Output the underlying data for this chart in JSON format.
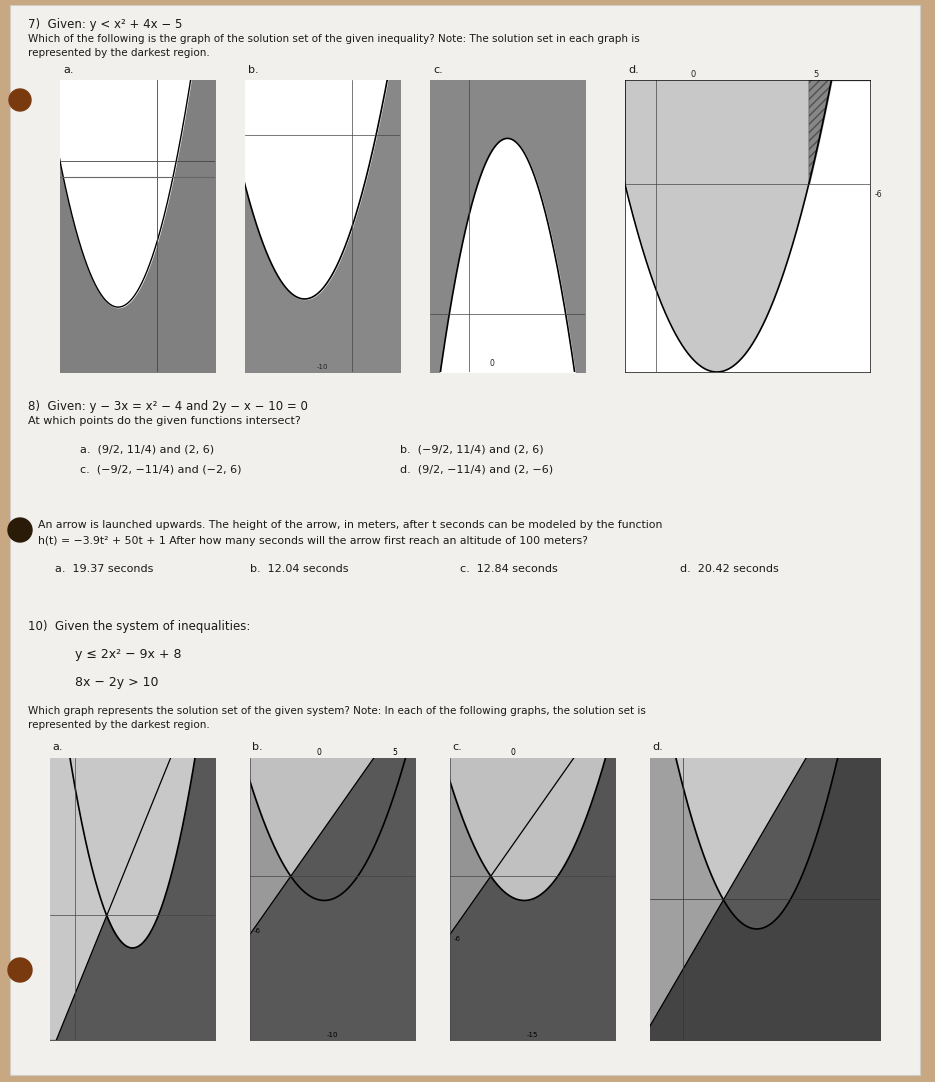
{
  "bg_color": "#c8a882",
  "paper_color": "#f2f0ec",
  "text_color": "#1a1a1a",
  "graph_bg": "#b0b0b0",
  "graph_dark": "#606060",
  "graph_mid": "#909090",
  "graph_light": "#d0d0d0",
  "hole_color": "#7a3a10",
  "q7_line1": "7)  Given: y < x² + 4x − 5",
  "q7_line2": "Which of the following is the graph of the solution set of the given inequality? Note: The solution set in each graph is",
  "q7_line3": "represented by the darkest region.",
  "q8_line1": "8)  Given: y − 3x = x² − 4 and 2y − x − 10 = 0",
  "q8_line2": "At which points do the given functions intersect?",
  "q8_a": "a.  (9/2, 11/4) and (2, 6)",
  "q8_b": "b.  (−9/2, 11/4) and (2, 6)",
  "q8_c": "c.  (−9/2, −11/4) and (−2, 6)",
  "q8_d": "d.  (9/2, −11/4) and (2, −6)",
  "q9_line1": "An arrow is launched upwards. The height of the arrow, in meters, after t seconds can be modeled by the function",
  "q9_line2": "h(t) = −3.9t² + 50t + 1 After how many seconds will the arrow first reach an altitude of 100 meters?",
  "q9_a": "a.  19.37 seconds",
  "q9_b": "b.  12.04 seconds",
  "q9_c": "c.  12.84 seconds",
  "q9_d": "d.  20.42 seconds",
  "q10_line1": "10)  Given the system of inequalities:",
  "q10_ineq1": "y ≤ 2x² − 9x + 8",
  "q10_ineq2": "8x − 2y > 10",
  "q10_line2": "Which graph represents the solution set of the given system? Note: In each of the following graphs, the solution set is",
  "q10_line3": "represented by the darkest region."
}
